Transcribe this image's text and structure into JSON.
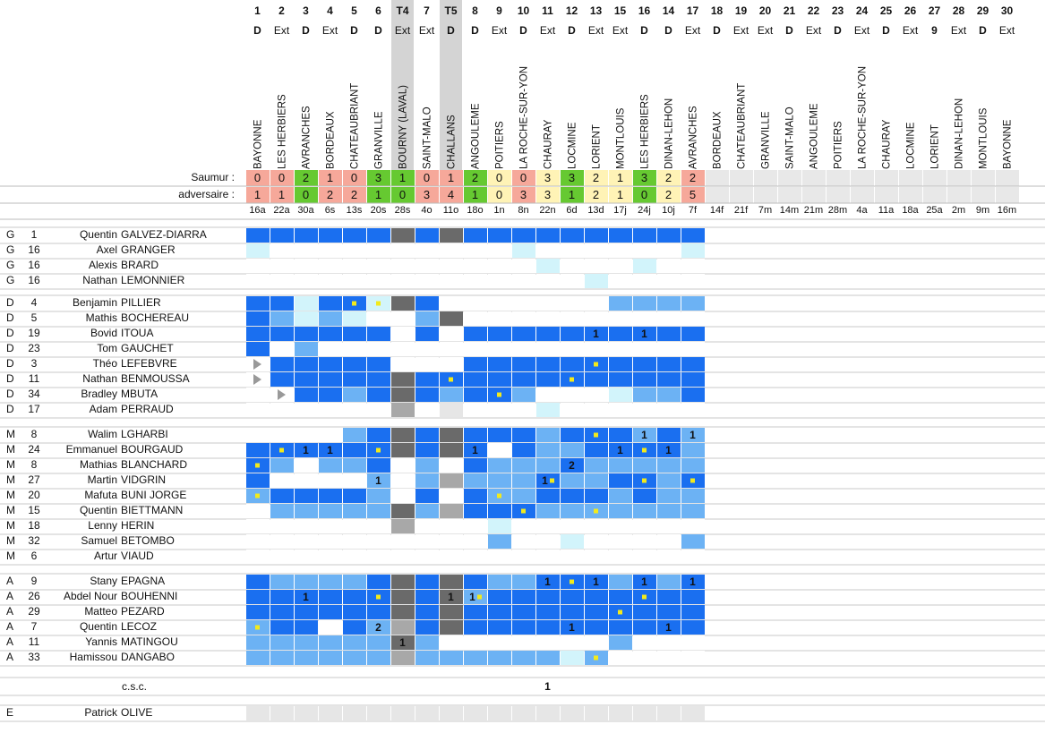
{
  "labels": {
    "saumur": "Saumur :",
    "adversaire": "adversaire :",
    "csc": "c.s.c."
  },
  "cell_colors": {
    "B": "#1a6ff0",
    "m": "#6cb2f4",
    "p": "#d2f4fb",
    "G": "#6a6a6a",
    "g": "#a8a8a8",
    "l": "#e6e6e6",
    "t": "#ffffff",
    ".": "#ffffff"
  },
  "result_colors": {
    "win": "#66c931",
    "loss": "#f6a89a",
    "draw": "#fff3b6",
    "none": "#e8e8e8"
  },
  "columns": [
    {
      "round": "1",
      "venue": "D",
      "opponent": "BAYONNE",
      "saumur": 0,
      "adversaire": 1,
      "date": "16a"
    },
    {
      "round": "2",
      "venue": "Ext",
      "opponent": "LES HERBIERS",
      "saumur": 0,
      "adversaire": 1,
      "date": "22a"
    },
    {
      "round": "3",
      "venue": "D",
      "opponent": "AVRANCHES",
      "saumur": 2,
      "adversaire": 0,
      "date": "30a"
    },
    {
      "round": "4",
      "venue": "Ext",
      "opponent": "BORDEAUX",
      "saumur": 1,
      "adversaire": 2,
      "date": "6s"
    },
    {
      "round": "5",
      "venue": "D",
      "opponent": "CHATEAUBRIANT",
      "saumur": 0,
      "adversaire": 2,
      "date": "13s"
    },
    {
      "round": "6",
      "venue": "D",
      "opponent": "GRANVILLE",
      "saumur": 3,
      "adversaire": 1,
      "date": "20s"
    },
    {
      "round": "T4",
      "venue": "Ext",
      "opponent": "BOURNY (LAVAL)",
      "saumur": 1,
      "adversaire": 0,
      "date": "28s",
      "cup": true
    },
    {
      "round": "7",
      "venue": "Ext",
      "opponent": "SAINT-MALO",
      "saumur": 0,
      "adversaire": 3,
      "date": "4o"
    },
    {
      "round": "T5",
      "venue": "D",
      "opponent": "CHALLANS",
      "saumur": 1,
      "adversaire": 4,
      "date": "11o",
      "cup": true
    },
    {
      "round": "8",
      "venue": "D",
      "opponent": "ANGOULEME",
      "saumur": 2,
      "adversaire": 1,
      "date": "18o"
    },
    {
      "round": "9",
      "venue": "Ext",
      "opponent": "POITIERS",
      "saumur": 0,
      "adversaire": 0,
      "date": "1n"
    },
    {
      "round": "10",
      "venue": "D",
      "opponent": "LA ROCHE-SUR-YON",
      "saumur": 0,
      "adversaire": 3,
      "date": "8n"
    },
    {
      "round": "11",
      "venue": "Ext",
      "opponent": "CHAURAY",
      "saumur": 3,
      "adversaire": 3,
      "date": "22n"
    },
    {
      "round": "12",
      "venue": "D",
      "opponent": "LOCMINE",
      "saumur": 3,
      "adversaire": 1,
      "date": "6d"
    },
    {
      "round": "13",
      "venue": "Ext",
      "opponent": "LORIENT",
      "saumur": 2,
      "adversaire": 2,
      "date": "13d"
    },
    {
      "round": "15",
      "venue": "Ext",
      "opponent": "MONTLOUIS",
      "saumur": 1,
      "adversaire": 1,
      "date": "17j"
    },
    {
      "round": "16",
      "venue": "D",
      "opponent": "LES HERBIERS",
      "saumur": 3,
      "adversaire": 0,
      "date": "24j"
    },
    {
      "round": "14",
      "venue": "D",
      "opponent": "DINAN-LEHON",
      "saumur": 2,
      "adversaire": 2,
      "date": "10j",
      "color": "#e53030"
    },
    {
      "round": "17",
      "venue": "Ext",
      "opponent": "AVRANCHES",
      "saumur": 2,
      "adversaire": 5,
      "date": "7f"
    },
    {
      "round": "18",
      "venue": "D",
      "opponent": "BORDEAUX",
      "date": "14f"
    },
    {
      "round": "19",
      "venue": "Ext",
      "opponent": "CHATEAUBRIANT",
      "date": "21f"
    },
    {
      "round": "20",
      "venue": "Ext",
      "opponent": "GRANVILLE",
      "date": "7m"
    },
    {
      "round": "21",
      "venue": "D",
      "opponent": "SAINT-MALO",
      "date": "14m"
    },
    {
      "round": "22",
      "venue": "Ext",
      "opponent": "ANGOULEME",
      "date": "21m"
    },
    {
      "round": "23",
      "venue": "D",
      "opponent": "POITIERS",
      "date": "28m"
    },
    {
      "round": "24",
      "venue": "Ext",
      "opponent": "LA ROCHE-SUR-YON",
      "date": "4a"
    },
    {
      "round": "25",
      "venue": "D",
      "opponent": "CHAURAY",
      "date": "11a"
    },
    {
      "round": "26",
      "venue": "Ext",
      "opponent": "LOCMINE",
      "date": "18a"
    },
    {
      "round": "27",
      "venue": "9",
      "opponent": "LORIENT",
      "date": "25a"
    },
    {
      "round": "28",
      "venue": "Ext",
      "opponent": "DINAN-LEHON",
      "date": "2m"
    },
    {
      "round": "29",
      "venue": "D",
      "opponent": "MONTLOUIS",
      "date": "9m"
    },
    {
      "round": "30",
      "venue": "Ext",
      "opponent": "BAYONNE",
      "date": "16m"
    }
  ],
  "groups": [
    {
      "rows": [
        {
          "pos": "G",
          "num": 1,
          "first": "Quentin",
          "last": "GALVEZ-DIARRA",
          "cells": "BBBBBBGBGBBBBBBBBBB"
        },
        {
          "pos": "G",
          "num": 16,
          "first": "Axel",
          "last": "GRANGER",
          "cells": "p..........p......p",
          "inactive": true
        },
        {
          "pos": "G",
          "num": 16,
          "first": "Alexis",
          "last": "BRARD",
          "cells": "............p...p..",
          "inactive": true
        },
        {
          "pos": "G",
          "num": 16,
          "first": "Nathan",
          "last": "LEMONNIER",
          "cells": "..............p....",
          "inactive": true
        }
      ]
    },
    {
      "rows": [
        {
          "pos": "D",
          "num": 4,
          "first": "Benjamin",
          "last": "PILLIER",
          "cells": "BBpBBpGB.......mmmm",
          "cards": [
            4,
            5
          ]
        },
        {
          "pos": "D",
          "num": 5,
          "first": "Mathis",
          "last": "BOCHEREAU",
          "cells": "Bmpmp..mG.........."
        },
        {
          "pos": "D",
          "num": 19,
          "first": "Bovid",
          "last": "ITOUA",
          "cells": "BBBBBB.B.BBBBBBBBBB",
          "goals": {
            "14": 1,
            "16": 1
          }
        },
        {
          "pos": "D",
          "num": 23,
          "first": "Tom",
          "last": "GAUCHET",
          "cells": "B.m................"
        },
        {
          "pos": "D",
          "num": 3,
          "first": "Théo",
          "last": "LEFEBVRE",
          "cells": "tBBBBB...BBBBBBBBBB",
          "cards": [
            14
          ]
        },
        {
          "pos": "D",
          "num": 11,
          "first": "Nathan",
          "last": "BENMOUSSA",
          "cells": "tBBBBBGBBBBBBBBBBBB",
          "cards": [
            8,
            13
          ]
        },
        {
          "pos": "D",
          "num": 34,
          "first": "Bradley",
          "last": "MBUTA",
          "cells": ".tBBmBGBmBBm...pmmB",
          "cards": [
            10
          ]
        },
        {
          "pos": "D",
          "num": 17,
          "first": "Adam",
          "last": "PERRAUD",
          "cells": "......g.l...p......"
        }
      ]
    },
    {
      "rows": [
        {
          "pos": "M",
          "num": 8,
          "first": "Walim",
          "last": "LGHARBI",
          "cells": "....mBGBGBBBmBBBmBm",
          "goals": {
            "16": 1,
            "18": 1
          },
          "cards": [
            14
          ]
        },
        {
          "pos": "M",
          "num": 24,
          "first": "Emmanuel",
          "last": "BOURGAUD",
          "cells": "BBBBBBGBGB.BmmBBBBm",
          "goals": {
            "2": 1,
            "3": 1,
            "9": 1,
            "15": 1,
            "17": 1
          },
          "cards": [
            1,
            5,
            16
          ]
        },
        {
          "pos": "M",
          "num": 8,
          "first": "Mathias",
          "last": "BLANCHARD",
          "cells": "Bm.mmB.m.BmmmBmmmmm",
          "goals": {
            "13": 2
          },
          "cards": [
            0
          ]
        },
        {
          "pos": "M",
          "num": 27,
          "first": "Martin",
          "last": "VIDGRIN",
          "cells": "B....m.mgmmmBmmBBmB",
          "goals": {
            "5": 1,
            "12": 1
          },
          "cards": [
            12,
            16,
            18
          ]
        },
        {
          "pos": "M",
          "num": 20,
          "first": "Mafuta",
          "last": "BUNI JORGE",
          "cells": "mBBBBm.B.BmmBBBmBmm",
          "cards": [
            0,
            10
          ]
        },
        {
          "pos": "M",
          "num": 15,
          "first": "Quentin",
          "last": "BIETTMANN",
          "cells": ".mmmmmGmgBBBmmmmmmm",
          "cards": [
            11,
            14
          ]
        },
        {
          "pos": "M",
          "num": 18,
          "first": "Lenny",
          "last": "HERIN",
          "cells": "......g...p........"
        },
        {
          "pos": "M",
          "num": 32,
          "first": "Samuel",
          "last": "BETOMBO",
          "cells": "..........m..p....m"
        },
        {
          "pos": "M",
          "num": 6,
          "first": "Artur",
          "last": "VIAUD",
          "cells": "...................",
          "inactive": true
        }
      ]
    },
    {
      "rows": [
        {
          "pos": "A",
          "num": 9,
          "first": "Stany",
          "last": "EPAGNA",
          "cells": "BmmmmBGBGBmmBBBmBmB",
          "goals": {
            "12": 1,
            "14": 1,
            "16": 1,
            "18": 1
          },
          "cards": [
            13
          ]
        },
        {
          "pos": "A",
          "num": 26,
          "first": "Abdel Nour",
          "last": "BOUHENNI",
          "cells": "BBBBBBGBGmBBBBBBBBB",
          "goals": {
            "2": 1,
            "8": 1,
            "9": 1
          },
          "cards": [
            5,
            9,
            16
          ]
        },
        {
          "pos": "A",
          "num": 29,
          "first": "Matteo",
          "last": "PEZARD",
          "cells": "BBBBBBGBGBBBBBBBBBB",
          "cards": [
            15
          ]
        },
        {
          "pos": "A",
          "num": 7,
          "first": "Quentin",
          "last": "LECOZ",
          "cells": "mBB.BmgBGBBBBBBBBBB",
          "goals": {
            "5": 2,
            "13": 1,
            "17": 1
          },
          "cards": [
            0
          ]
        },
        {
          "pos": "A",
          "num": 11,
          "first": "Yannis",
          "last": "MATINGOU",
          "cells": "mmmmmmGm.......m...",
          "goals": {
            "6": 1
          }
        },
        {
          "pos": "A",
          "num": 33,
          "first": "Hamissou",
          "last": "DANGABO",
          "cells": "mmmmmmgmmmmmmpm....",
          "cards": [
            14
          ]
        }
      ]
    }
  ],
  "csc": {
    "goals": {
      "12": 1
    }
  },
  "staff": {
    "pos": "E",
    "first": "Patrick",
    "last": "OLIVE",
    "cells": "lllllllllllllllllll"
  }
}
